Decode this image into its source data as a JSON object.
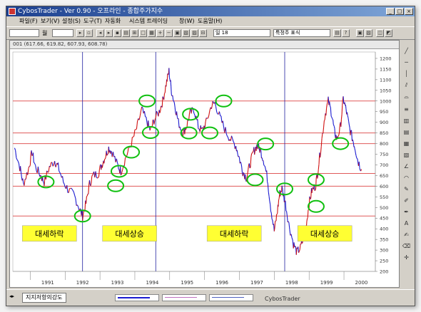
{
  "window": {
    "title": "CybosTrader - Ver 0.90 - 오프라인 - 종합주가지수",
    "buttons": [
      "_",
      "□",
      "×"
    ]
  },
  "menu": [
    "파일(F)",
    "보기(V)",
    "설정(S)",
    "도구(T)",
    "자동화",
    "시스템 트레이딩",
    "창(W)",
    "도움말(H)"
  ],
  "toolbar": {
    "code_label": "월",
    "period_select": "일 18",
    "indicator_select": "특정주 표식",
    "code_value": ""
  },
  "chart_header": "001 (617.66, 619.82, 607.93, 608.78)",
  "chart_data": {
    "type": "line",
    "x_labels": [
      "1991",
      "1992",
      "1993",
      "1994",
      "1995",
      "1996",
      "1997",
      "1998",
      "1999",
      "2000"
    ],
    "y_ticks": [
      1200,
      1150,
      1100,
      1050,
      1000,
      950,
      900,
      850,
      800,
      750,
      700,
      650,
      600,
      550,
      500,
      450,
      400,
      350,
      300,
      250,
      200
    ],
    "ylim": [
      200,
      1230
    ],
    "horizontal_levels": [
      1000,
      850,
      800,
      660,
      600,
      460
    ],
    "vertical_markers": [
      1992.5,
      1994.6,
      1998.3
    ],
    "series": [
      {
        "points": [
          [
            1990.55,
            780
          ],
          [
            1990.7,
            690
          ],
          [
            1990.8,
            610
          ],
          [
            1990.95,
            680
          ],
          [
            1991.05,
            760
          ],
          [
            1991.15,
            690
          ],
          [
            1991.3,
            650
          ],
          [
            1991.4,
            620
          ],
          [
            1991.55,
            690
          ],
          [
            1991.7,
            720
          ],
          [
            1991.8,
            690
          ],
          [
            1991.95,
            620
          ],
          [
            1992.1,
            580
          ],
          [
            1992.25,
            560
          ],
          [
            1992.4,
            500
          ],
          [
            1992.5,
            460
          ],
          [
            1992.6,
            520
          ],
          [
            1992.7,
            610
          ],
          [
            1992.8,
            650
          ],
          [
            1992.95,
            660
          ],
          [
            1993.05,
            700
          ],
          [
            1993.15,
            740
          ],
          [
            1993.25,
            780
          ],
          [
            1993.35,
            760
          ],
          [
            1993.5,
            700
          ],
          [
            1993.6,
            670
          ],
          [
            1993.75,
            740
          ],
          [
            1993.9,
            800
          ],
          [
            1994.05,
            870
          ],
          [
            1994.2,
            960
          ],
          [
            1994.35,
            900
          ],
          [
            1994.45,
            860
          ],
          [
            1994.55,
            910
          ],
          [
            1994.7,
            950
          ],
          [
            1994.8,
            1000
          ],
          [
            1994.9,
            1080
          ],
          [
            1994.98,
            1140
          ],
          [
            1995.05,
            1050
          ],
          [
            1995.15,
            980
          ],
          [
            1995.25,
            900
          ],
          [
            1995.38,
            850
          ],
          [
            1995.48,
            880
          ],
          [
            1995.58,
            940
          ],
          [
            1995.7,
            960
          ],
          [
            1995.82,
            880
          ],
          [
            1995.92,
            860
          ],
          [
            1996.05,
            900
          ],
          [
            1996.2,
            980
          ],
          [
            1996.3,
            990
          ],
          [
            1996.45,
            920
          ],
          [
            1996.6,
            860
          ],
          [
            1996.75,
            820
          ],
          [
            1996.9,
            790
          ],
          [
            1997.0,
            730
          ],
          [
            1997.1,
            670
          ],
          [
            1997.2,
            640
          ],
          [
            1997.3,
            700
          ],
          [
            1997.4,
            760
          ],
          [
            1997.5,
            790
          ],
          [
            1997.6,
            770
          ],
          [
            1997.7,
            720
          ],
          [
            1997.8,
            640
          ],
          [
            1997.9,
            500
          ],
          [
            1998.0,
            390
          ],
          [
            1998.08,
            470
          ],
          [
            1998.15,
            560
          ],
          [
            1998.22,
            590
          ],
          [
            1998.32,
            520
          ],
          [
            1998.42,
            420
          ],
          [
            1998.55,
            330
          ],
          [
            1998.65,
            290
          ],
          [
            1998.75,
            310
          ],
          [
            1998.85,
            360
          ],
          [
            1998.92,
            420
          ],
          [
            1999.0,
            520
          ],
          [
            1999.08,
            580
          ],
          [
            1999.18,
            600
          ],
          [
            1999.25,
            670
          ],
          [
            1999.35,
            800
          ],
          [
            1999.45,
            930
          ],
          [
            1999.55,
            1000
          ],
          [
            1999.65,
            940
          ],
          [
            1999.72,
            860
          ],
          [
            1999.8,
            820
          ],
          [
            1999.9,
            880
          ],
          [
            1999.98,
            1010
          ],
          [
            2000.06,
            960
          ],
          [
            2000.15,
            880
          ],
          [
            2000.25,
            820
          ],
          [
            2000.32,
            780
          ],
          [
            2000.4,
            720
          ],
          [
            2000.5,
            680
          ]
        ]
      }
    ],
    "circled_points": [
      [
        1991.45,
        620
      ],
      [
        1992.5,
        460
      ],
      [
        1993.45,
        602
      ],
      [
        1993.9,
        760
      ],
      [
        1993.55,
        670
      ],
      [
        1994.35,
        1000
      ],
      [
        1994.45,
        852
      ],
      [
        1995.6,
        938
      ],
      [
        1995.55,
        850
      ],
      [
        1996.15,
        850
      ],
      [
        1996.55,
        1000
      ],
      [
        1997.45,
        630
      ],
      [
        1997.75,
        798
      ],
      [
        1998.3,
        587
      ],
      [
        1999.2,
        630
      ],
      [
        1999.2,
        505
      ],
      [
        1999.9,
        800
      ]
    ],
    "annotations": [
      {
        "text": "대세하락",
        "x": 1991.55,
        "y": 378
      },
      {
        "text": "대세상승",
        "x": 1993.85,
        "y": 378
      },
      {
        "text": "대세하락",
        "x": 1996.85,
        "y": 378
      },
      {
        "text": "대세상승",
        "x": 1999.45,
        "y": 378
      }
    ],
    "colors": {
      "line_up": "#d01010",
      "line_down": "#1a1ad0",
      "level_line": "#e05a5a",
      "vertical_marker": "#2020a0",
      "circle": "#10c010",
      "annotation_bg": "#ffff33"
    }
  },
  "bottom": {
    "tab_label": "지지저항의강도",
    "status": "CybosTrader"
  }
}
